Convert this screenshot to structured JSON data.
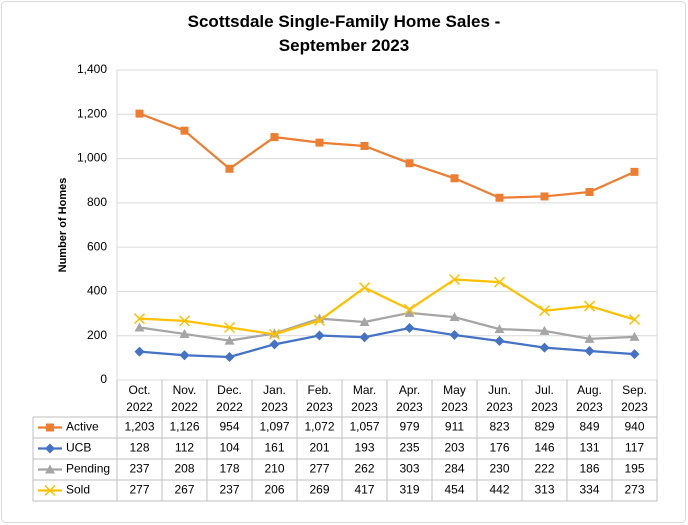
{
  "chart_data": {
    "type": "line",
    "title": "Scottsdale Single-Family Home Sales -\nSeptember 2023",
    "y_label": "Number of Homes",
    "categories": [
      "Oct.\n2022",
      "Nov.\n2022",
      "Dec.\n2022",
      "Jan.\n2023",
      "Feb.\n2023",
      "Mar.\n2023",
      "Apr.\n2023",
      "May\n2023",
      "Jun.\n2023",
      "Jul.\n2023",
      "Aug.\n2023",
      "Sep.\n2023"
    ],
    "series": [
      {
        "name": "Active",
        "color": "#ED7D31",
        "marker": "square",
        "values": [
          1203,
          1126,
          954,
          1097,
          1072,
          1057,
          979,
          911,
          823,
          829,
          849,
          940
        ],
        "value_labels": [
          "1,203",
          "1,126",
          "954",
          "1,097",
          "1,072",
          "1,057",
          "979",
          "911",
          "823",
          "829",
          "849",
          "940"
        ]
      },
      {
        "name": "UCB",
        "color": "#4472C4",
        "marker": "diamond",
        "values": [
          128,
          112,
          104,
          161,
          201,
          193,
          235,
          203,
          176,
          146,
          131,
          117
        ]
      },
      {
        "name": "Pending",
        "color": "#A5A5A5",
        "marker": "triangle",
        "values": [
          237,
          208,
          178,
          210,
          277,
          262,
          303,
          284,
          230,
          222,
          186,
          195
        ]
      },
      {
        "name": "Sold",
        "color": "#FFC000",
        "marker": "x",
        "values": [
          277,
          267,
          237,
          206,
          269,
          417,
          319,
          454,
          442,
          313,
          334,
          273
        ]
      }
    ],
    "ylim": [
      0,
      1400
    ],
    "yticks": [
      0,
      200,
      400,
      600,
      800,
      {
        "value": 1000,
        "label": "1,000"
      },
      {
        "value": 1200,
        "label": "1,200"
      },
      {
        "value": 1400,
        "label": "1,400"
      }
    ],
    "grid": true
  }
}
